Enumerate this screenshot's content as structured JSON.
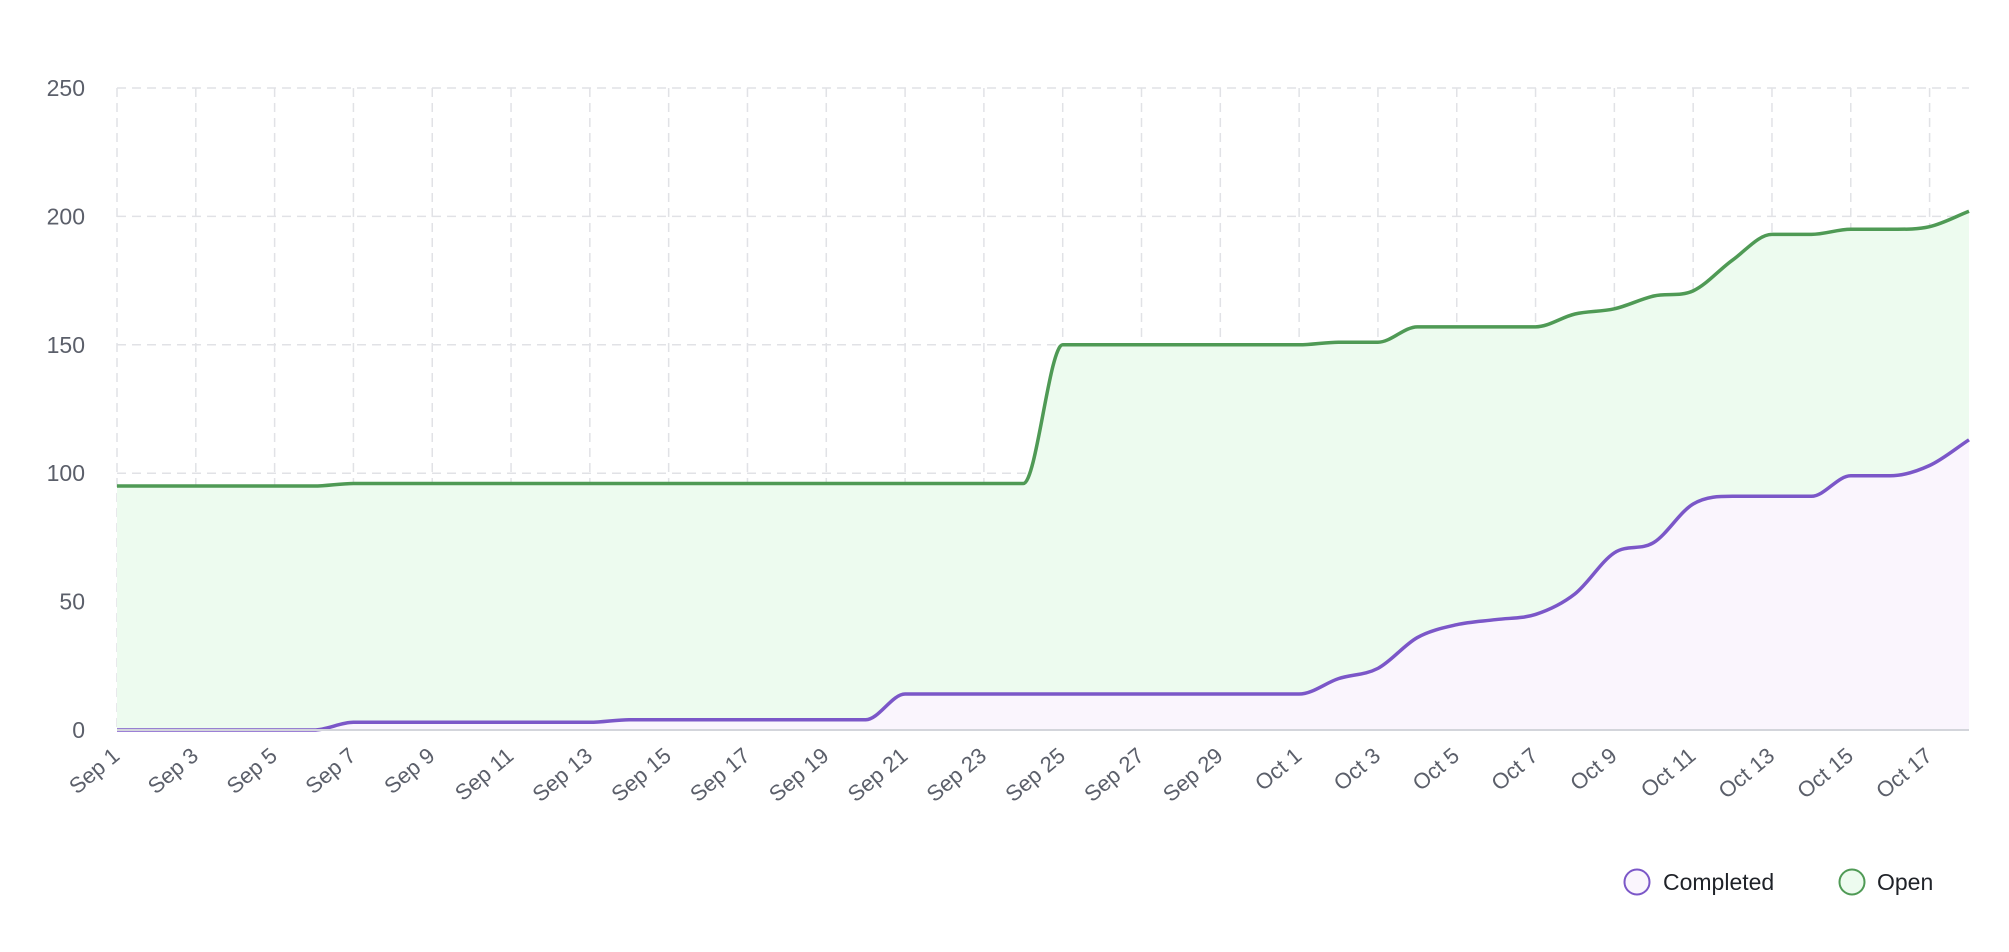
{
  "chart_data": {
    "type": "area",
    "title": "",
    "xlabel": "",
    "ylabel": "",
    "ylim": [
      0,
      250
    ],
    "yticks": [
      0,
      50,
      100,
      150,
      200,
      250
    ],
    "grid": true,
    "legend_position": "bottom-right",
    "stacked": false,
    "categories": [
      "Sep 1",
      "Sep 2",
      "Sep 3",
      "Sep 4",
      "Sep 5",
      "Sep 6",
      "Sep 7",
      "Sep 8",
      "Sep 9",
      "Sep 10",
      "Sep 11",
      "Sep 12",
      "Sep 13",
      "Sep 14",
      "Sep 15",
      "Sep 16",
      "Sep 17",
      "Sep 18",
      "Sep 19",
      "Sep 20",
      "Sep 21",
      "Sep 22",
      "Sep 23",
      "Sep 24",
      "Sep 25",
      "Sep 26",
      "Sep 27",
      "Sep 28",
      "Sep 29",
      "Sep 30",
      "Oct 1",
      "Oct 2",
      "Oct 3",
      "Oct 4",
      "Oct 5",
      "Oct 6",
      "Oct 7",
      "Oct 8",
      "Oct 9",
      "Oct 10",
      "Oct 11",
      "Oct 12",
      "Oct 13",
      "Oct 14",
      "Oct 15",
      "Oct 16",
      "Oct 17",
      "Oct 18"
    ],
    "xtick_labels": [
      "Sep 1",
      "Sep 3",
      "Sep 5",
      "Sep 7",
      "Sep 9",
      "Sep 11",
      "Sep 13",
      "Sep 15",
      "Sep 17",
      "Sep 19",
      "Sep 21",
      "Sep 23",
      "Sep 25",
      "Sep 27",
      "Sep 29",
      "Oct 1",
      "Oct 3",
      "Oct 5",
      "Oct 7",
      "Oct 9",
      "Oct 11",
      "Oct 13",
      "Oct 15",
      "Oct 17"
    ],
    "series": [
      {
        "name": "Completed",
        "color": "#7b57c8",
        "fill": "#faf5fd",
        "values": [
          0,
          0,
          0,
          0,
          0,
          0,
          3,
          3,
          3,
          3,
          3,
          3,
          3,
          4,
          4,
          4,
          4,
          4,
          4,
          4,
          14,
          14,
          14,
          14,
          14,
          14,
          14,
          14,
          14,
          14,
          14,
          20,
          24,
          36,
          41,
          43,
          45,
          53,
          69,
          73,
          88,
          91,
          91,
          91,
          99,
          99,
          103,
          113
        ]
      },
      {
        "name": "Open",
        "color": "#4f9a55",
        "fill": "#edfbef",
        "values": [
          95,
          95,
          95,
          95,
          95,
          95,
          96,
          96,
          96,
          96,
          96,
          96,
          96,
          96,
          96,
          96,
          96,
          96,
          96,
          96,
          96,
          96,
          96,
          96,
          150,
          150,
          150,
          150,
          150,
          150,
          150,
          151,
          151,
          157,
          157,
          157,
          157,
          162,
          164,
          169,
          171,
          183,
          193,
          193,
          195,
          195,
          196,
          202
        ]
      }
    ]
  },
  "legend": {
    "items": [
      {
        "label": "Completed",
        "color": "#7b57c8",
        "fill": "#faf5fd"
      },
      {
        "label": "Open",
        "color": "#4f9a55",
        "fill": "#edfbef"
      }
    ]
  }
}
